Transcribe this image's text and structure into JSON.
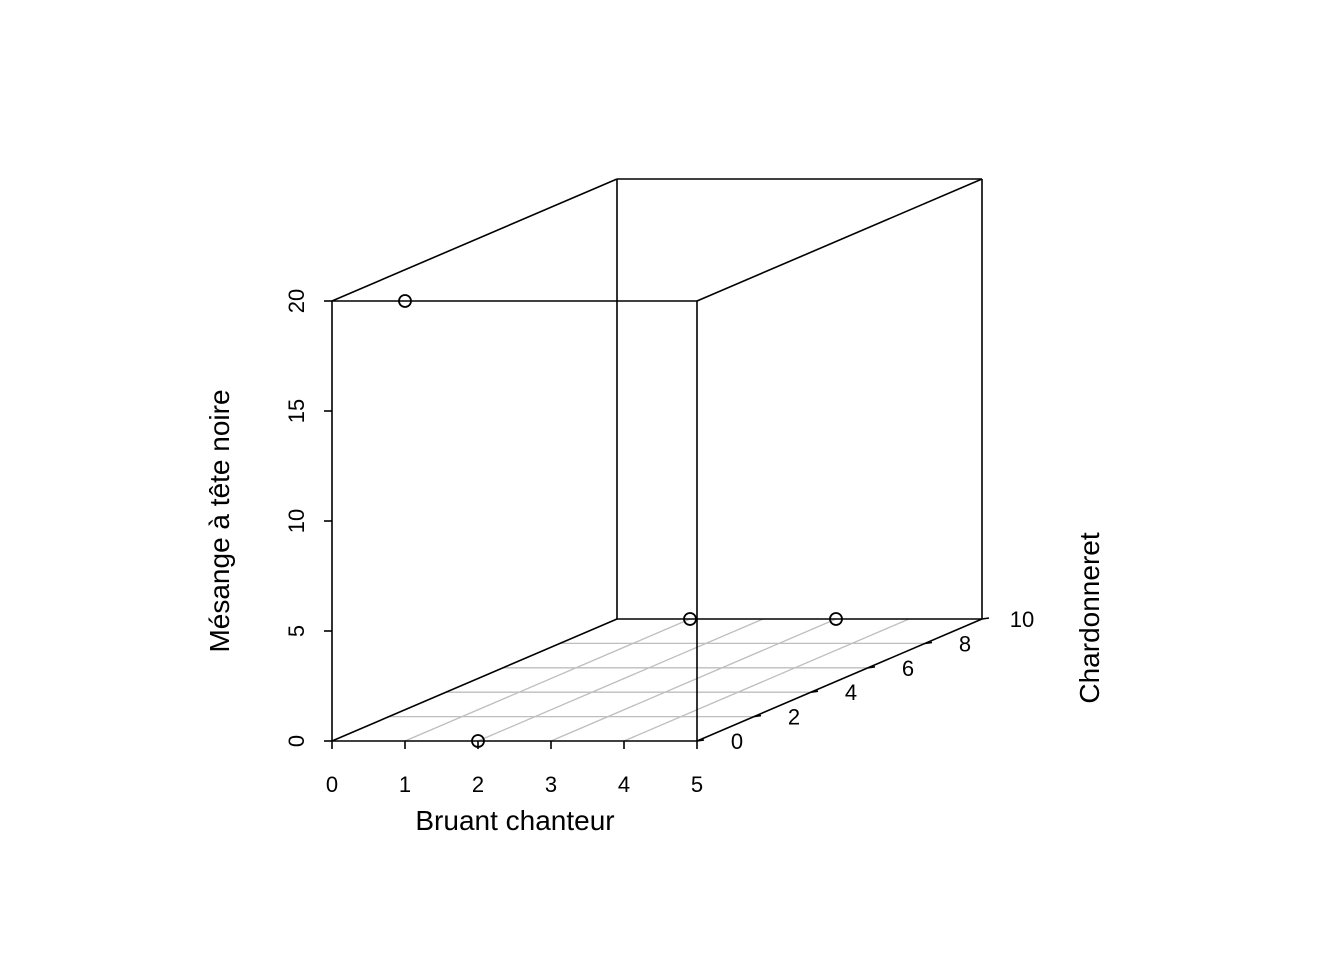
{
  "chart_data": {
    "type": "scatter3d",
    "x_axis": {
      "label": "Bruant chanteur",
      "range": [
        0,
        5
      ],
      "ticks": [
        0,
        1,
        2,
        3,
        4,
        5
      ]
    },
    "y_axis": {
      "label": "Chardonneret",
      "range": [
        0,
        10
      ],
      "ticks": [
        0,
        2,
        4,
        6,
        8,
        10
      ]
    },
    "z_axis": {
      "label": "Mésange à tête noire",
      "range": [
        0,
        20
      ],
      "ticks": [
        0,
        5,
        10,
        15,
        20
      ]
    },
    "floor_grid": true,
    "points": [
      {
        "x": 1,
        "y": 0,
        "z": 20
      },
      {
        "x": 2,
        "y": 0,
        "z": 0
      },
      {
        "x": 1,
        "y": 10,
        "z": 0
      },
      {
        "x": 3,
        "y": 10,
        "z": 0
      }
    ]
  }
}
